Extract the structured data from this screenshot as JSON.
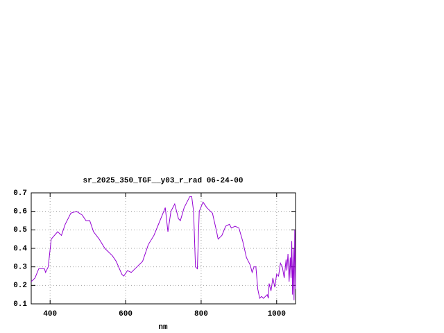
{
  "chart_data": {
    "type": "line",
    "title": "sr_2025_350_TGF__y03_r_rad 06-24-00",
    "x_label": "nm",
    "xlim": [
      350,
      1050
    ],
    "ylim": [
      0.1,
      0.7
    ],
    "xticks": [
      400,
      600,
      800,
      1000
    ],
    "yticks": [
      0.1,
      0.2,
      0.3,
      0.4,
      0.5,
      0.6,
      0.7
    ],
    "grid": true,
    "x": [
      350,
      360,
      370,
      385,
      388,
      395,
      403,
      420,
      430,
      440,
      455,
      470,
      485,
      495,
      505,
      515,
      530,
      545,
      565,
      575,
      590,
      595,
      605,
      615,
      630,
      645,
      660,
      675,
      685,
      695,
      705,
      712,
      720,
      730,
      740,
      745,
      755,
      770,
      775,
      780,
      785,
      790,
      795,
      805,
      815,
      830,
      840,
      845,
      855,
      865,
      875,
      880,
      890,
      900,
      910,
      920,
      930,
      935,
      940,
      945,
      950,
      955,
      960,
      965,
      975,
      978,
      980,
      985,
      990,
      995,
      1000,
      1005,
      1010,
      1015,
      1020,
      1025,
      1027,
      1030,
      1033,
      1036,
      1038,
      1040,
      1042,
      1044,
      1046,
      1048,
      1050
    ],
    "series": [
      {
        "color": "#9400d3",
        "values": [
          0.22,
          0.24,
          0.29,
          0.29,
          0.27,
          0.3,
          0.45,
          0.49,
          0.47,
          0.53,
          0.59,
          0.6,
          0.58,
          0.55,
          0.55,
          0.49,
          0.45,
          0.4,
          0.36,
          0.33,
          0.26,
          0.25,
          0.28,
          0.27,
          0.3,
          0.33,
          0.42,
          0.47,
          0.52,
          0.57,
          0.62,
          0.49,
          0.6,
          0.64,
          0.56,
          0.55,
          0.62,
          0.68,
          0.68,
          0.6,
          0.3,
          0.29,
          0.6,
          0.65,
          0.62,
          0.59,
          0.5,
          0.45,
          0.47,
          0.52,
          0.53,
          0.51,
          0.52,
          0.51,
          0.44,
          0.35,
          0.31,
          0.27,
          0.3,
          0.3,
          0.18,
          0.13,
          0.14,
          0.13,
          0.15,
          0.13,
          0.21,
          0.17,
          0.24,
          0.19,
          0.26,
          0.25,
          0.32,
          0.3,
          0.24,
          0.34,
          0.28,
          0.37,
          0.22,
          0.35,
          0.24,
          0.44,
          0.15,
          0.4,
          0.12,
          0.5,
          0.18
        ]
      }
    ]
  }
}
